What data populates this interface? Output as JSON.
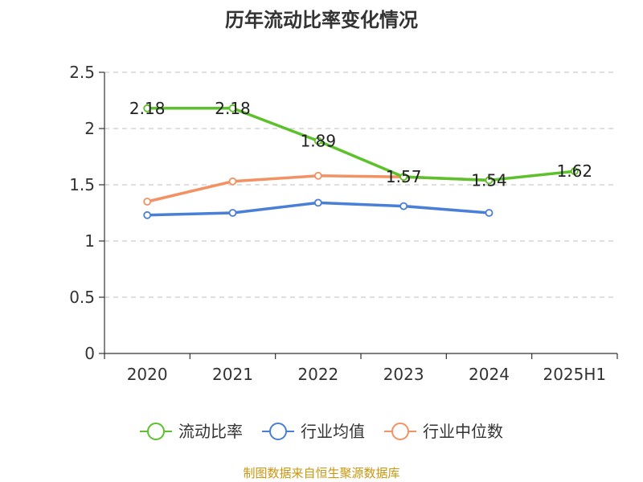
{
  "chart_data": {
    "type": "line",
    "title": "历年流动比率变化情况",
    "xlabel": "",
    "ylabel": "",
    "categories": [
      "2020",
      "2021",
      "2022",
      "2023",
      "2024",
      "2025H1"
    ],
    "ylim": [
      0,
      2.5
    ],
    "yticks": [
      "0",
      "0.5",
      "1",
      "1.5",
      "2",
      "2.5"
    ],
    "grid": true,
    "legend_position": "bottom",
    "series": [
      {
        "name": "流动比率",
        "color": "#5cc12b",
        "values": [
          2.18,
          2.18,
          1.89,
          1.57,
          1.54,
          1.62
        ],
        "labels": [
          "2.18",
          "2.18",
          "1.89",
          "1.57",
          "1.54",
          "1.62"
        ]
      },
      {
        "name": "行业均值",
        "color": "#4a7fd8",
        "values": [
          1.23,
          1.25,
          1.34,
          1.31,
          1.25,
          null
        ]
      },
      {
        "name": "行业中位数",
        "color": "#f39163",
        "values": [
          1.35,
          1.53,
          1.58,
          1.57,
          1.54,
          null
        ]
      }
    ],
    "source": "制图数据来自恒生聚源数据库"
  }
}
